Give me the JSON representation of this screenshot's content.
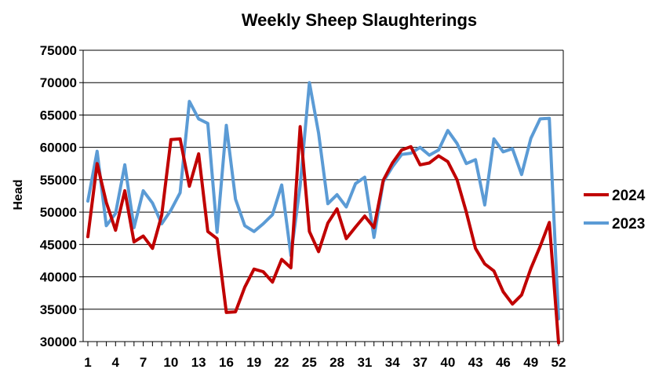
{
  "chart_data": {
    "type": "line",
    "title": "Weekly Sheep Slaughterings",
    "ylabel": "Head",
    "xlabel": "",
    "x": [
      1,
      2,
      3,
      4,
      5,
      6,
      7,
      8,
      9,
      10,
      11,
      12,
      13,
      14,
      15,
      16,
      17,
      18,
      19,
      20,
      21,
      22,
      23,
      24,
      25,
      26,
      27,
      28,
      29,
      30,
      31,
      32,
      33,
      34,
      35,
      36,
      37,
      38,
      39,
      40,
      41,
      42,
      43,
      44,
      45,
      46,
      47,
      48,
      49,
      50,
      51,
      52
    ],
    "x_tick_labels": [
      "1",
      "4",
      "7",
      "10",
      "13",
      "16",
      "19",
      "22",
      "25",
      "28",
      "31",
      "34",
      "37",
      "40",
      "43",
      "46",
      "49",
      "52"
    ],
    "ylim": [
      30000,
      75000
    ],
    "y_tick_labels": [
      "30000",
      "35000",
      "40000",
      "45000",
      "50000",
      "55000",
      "60000",
      "65000",
      "70000",
      "75000"
    ],
    "grid": "horizontal",
    "legend_position": "right",
    "series": [
      {
        "name": "2024",
        "color": "#C00000",
        "values": [
          46200,
          57500,
          51500,
          47200,
          53300,
          45400,
          46300,
          44400,
          49500,
          61200,
          61300,
          54000,
          59000,
          47000,
          45900,
          34500,
          34600,
          38400,
          41200,
          40800,
          39200,
          42700,
          41400,
          63200,
          47000,
          43900,
          48300,
          50500,
          45900,
          47700,
          49400,
          47600,
          54900,
          57600,
          59600,
          60100,
          57300,
          57600,
          58700,
          57800,
          55000,
          50000,
          44400,
          42000,
          40900,
          37700,
          35800,
          37200,
          41300,
          44700,
          48400,
          29800
        ]
      },
      {
        "name": "2023",
        "color": "#5B9BD5",
        "values": [
          51700,
          59400,
          47900,
          49800,
          57300,
          47600,
          53300,
          51400,
          48200,
          50300,
          53000,
          67100,
          64400,
          63700,
          46900,
          63400,
          52000,
          47900,
          47000,
          48200,
          49600,
          54200,
          43300,
          54100,
          70000,
          62200,
          51300,
          52700,
          50800,
          54400,
          55400,
          46100,
          54700,
          57000,
          58900,
          59100,
          60000,
          58800,
          59600,
          62600,
          60600,
          57500,
          58100,
          51100,
          61300,
          59300,
          59800,
          55800,
          61400,
          64400,
          64500,
          33500
        ]
      }
    ]
  }
}
